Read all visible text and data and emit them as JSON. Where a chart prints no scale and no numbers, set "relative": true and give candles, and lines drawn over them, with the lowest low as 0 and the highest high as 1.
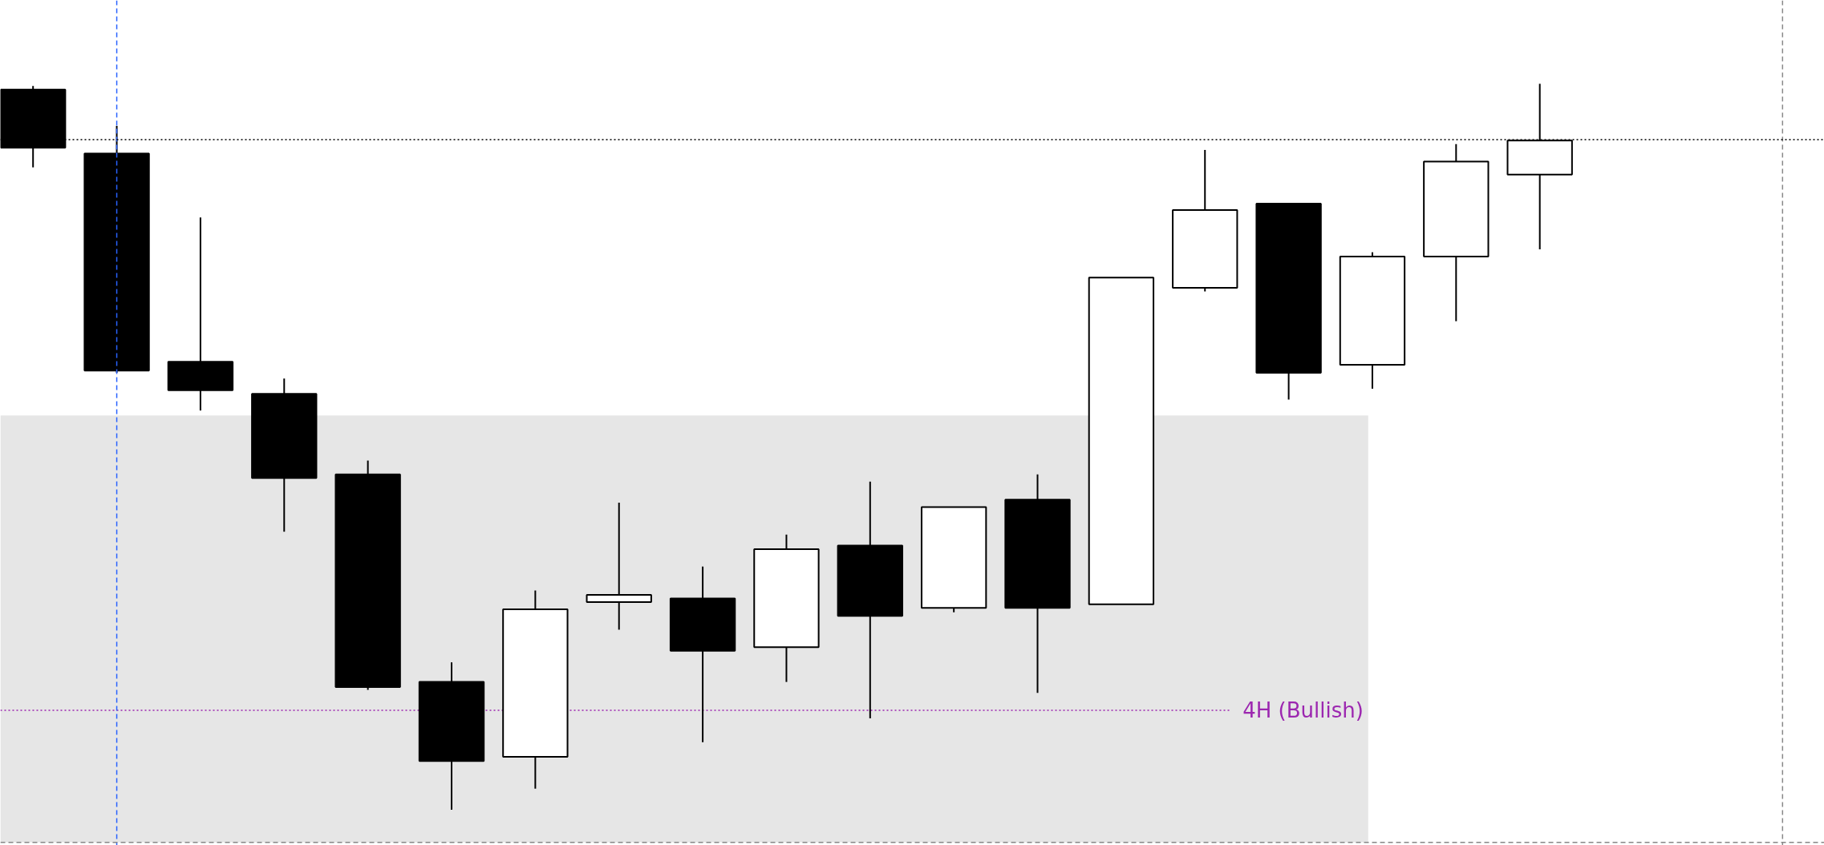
{
  "chart_data": {
    "type": "candlestick",
    "relative": true,
    "categories": [
      null,
      null,
      null,
      null,
      null,
      null,
      null,
      null,
      null,
      null,
      null,
      null,
      null,
      null,
      null,
      null,
      null,
      null,
      null
    ],
    "ohlc": [
      [
        0.992,
        0.997,
        0.885,
        0.912
      ],
      [
        0.904,
        0.942,
        0.602,
        0.605
      ],
      [
        0.617,
        0.816,
        0.55,
        0.578
      ],
      [
        0.573,
        0.594,
        0.383,
        0.457
      ],
      [
        0.462,
        0.481,
        0.165,
        0.169
      ],
      [
        0.176,
        0.203,
        0.0,
        0.067
      ],
      [
        0.073,
        0.302,
        0.029,
        0.276
      ],
      [
        0.286,
        0.423,
        0.248,
        0.296
      ],
      [
        0.291,
        0.335,
        0.093,
        0.219
      ],
      [
        0.224,
        0.379,
        0.176,
        0.359
      ],
      [
        0.364,
        0.452,
        0.126,
        0.267
      ],
      [
        0.278,
        0.417,
        0.272,
        0.417
      ],
      [
        0.427,
        0.462,
        0.161,
        0.278
      ],
      [
        0.283,
        0.733,
        0.283,
        0.733
      ],
      [
        0.719,
        0.909,
        0.714,
        0.826
      ],
      [
        0.835,
        0.835,
        0.565,
        0.602
      ],
      [
        0.613,
        0.768,
        0.58,
        0.762
      ],
      [
        0.762,
        0.917,
        0.673,
        0.893
      ],
      [
        0.875,
        1.0,
        0.772,
        0.922
      ]
    ],
    "colors": [
      "#000000",
      "#000000",
      "#000000",
      "#000000",
      "#000000",
      "#000000",
      "#ffffff",
      "#ffffff",
      "#000000",
      "#ffffff",
      "#000000",
      "#ffffff",
      "#000000",
      "#ffffff",
      "#ffffff",
      "#000000",
      "#ffffff",
      "#ffffff",
      "#ffffff"
    ],
    "ref_lines": [
      {
        "axis": "y",
        "value": 0.923,
        "label": null,
        "color": "#000000",
        "line_style": "dotted"
      },
      {
        "axis": "y",
        "value": 0.137,
        "label": "4H (Bullish)",
        "color": "#9c27b0",
        "line_style": "dotted"
      },
      {
        "axis": "y",
        "value": -0.045,
        "label": null,
        "color": "#888888",
        "line_style": "dashed"
      }
    ],
    "bands": [
      {
        "axis": "y",
        "from": -0.045,
        "to": 0.543,
        "label": null,
        "color": "#e6e6e6"
      }
    ]
  }
}
